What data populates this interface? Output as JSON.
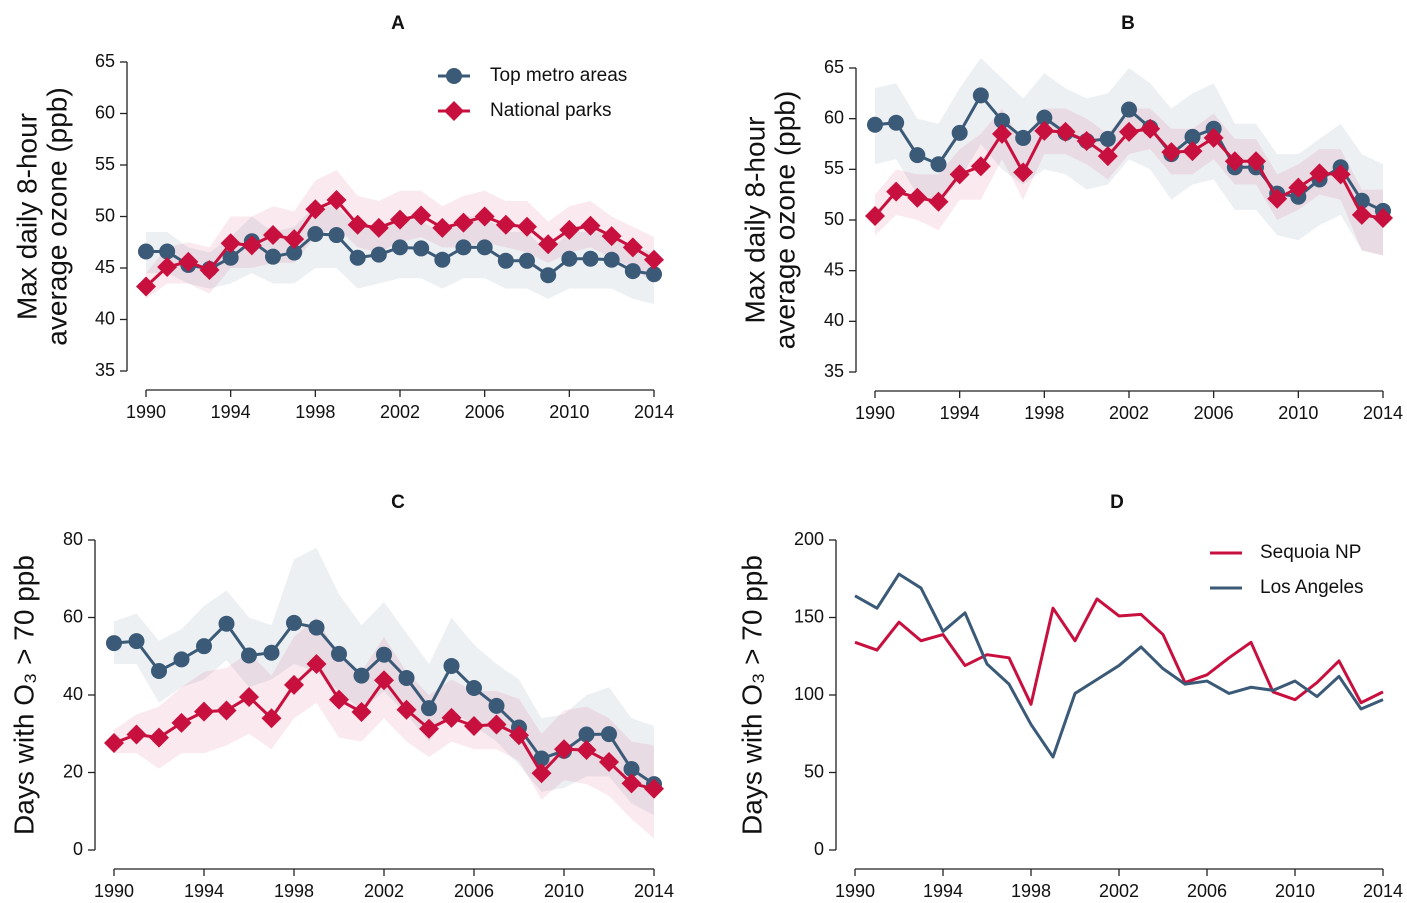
{
  "chart_data": [
    {
      "type": "line",
      "title": "A",
      "ylabel": [
        "Max daily 8-hour",
        "average ozone (ppb)"
      ],
      "x": [
        1990,
        1991,
        1992,
        1993,
        1994,
        1995,
        1996,
        1997,
        1998,
        1999,
        2000,
        2001,
        2002,
        2003,
        2004,
        2005,
        2006,
        2007,
        2008,
        2009,
        2010,
        2011,
        2012,
        2013,
        2014
      ],
      "xlim": [
        1990,
        2014
      ],
      "xticks": [
        1990,
        1994,
        1998,
        2002,
        2006,
        2010,
        2014
      ],
      "ylim": [
        35,
        65
      ],
      "yticks": [
        35,
        40,
        45,
        50,
        55,
        60,
        65
      ],
      "legend": "upper right",
      "series": [
        {
          "name": "Top metro areas",
          "color": "#3a5a78",
          "marker": "circle",
          "values": [
            46.6,
            46.6,
            45.3,
            44.9,
            46.0,
            47.6,
            46.1,
            46.5,
            48.3,
            48.2,
            46.0,
            46.3,
            47.0,
            46.9,
            45.8,
            47.0,
            47.0,
            45.7,
            45.7,
            44.3,
            45.9,
            45.9,
            45.8,
            44.7,
            44.4
          ],
          "band": {
            "lower": [
              44.5,
              44.5,
              43.5,
              43,
              43.5,
              44.5,
              43.5,
              43.5,
              45,
              45,
              43,
              43.5,
              44,
              44,
              43,
              44,
              44,
              43,
              43,
              42,
              43,
              43,
              43,
              42,
              41.5
            ],
            "upper": [
              48.5,
              48.5,
              47,
              46.5,
              48,
              50,
              48.5,
              49,
              51,
              51,
              49,
              49,
              50,
              49.5,
              48.5,
              50,
              50,
              48.5,
              48.5,
              46.5,
              48.5,
              48.5,
              48.5,
              47,
              46.5
            ]
          }
        },
        {
          "name": "National parks",
          "color": "#c8103f",
          "marker": "diamond",
          "values": [
            43.2,
            45.1,
            45.6,
            44.8,
            47.4,
            47.2,
            48.2,
            47.8,
            50.7,
            51.6,
            49.2,
            48.9,
            49.7,
            50.1,
            48.9,
            49.4,
            50.0,
            49.2,
            49.0,
            47.3,
            48.7,
            49.1,
            48.1,
            47.0,
            45.8
          ],
          "band": {
            "lower": [
              42,
              43.5,
              43.5,
              42.5,
              45,
              45,
              45.5,
              45.5,
              48,
              49,
              47,
              46.5,
              47.5,
              48,
              47,
              47,
              47.5,
              47,
              46.5,
              45.5,
              46.5,
              47,
              46,
              45,
              43.5
            ],
            "upper": [
              44.5,
              47,
              47.5,
              47,
              50,
              50,
              51,
              50.5,
              53.5,
              54.5,
              52,
              51.5,
              52.5,
              52.5,
              51,
              52,
              52.5,
              51.5,
              51.5,
              49.5,
              51,
              51.5,
              50,
              49,
              48
            ]
          }
        }
      ]
    },
    {
      "type": "line",
      "title": "B",
      "ylabel": [
        "Max daily 8-hour",
        "average ozone (ppb)"
      ],
      "x": [
        1990,
        1991,
        1992,
        1993,
        1994,
        1995,
        1996,
        1997,
        1998,
        1999,
        2000,
        2001,
        2002,
        2003,
        2004,
        2005,
        2006,
        2007,
        2008,
        2009,
        2010,
        2011,
        2012,
        2013,
        2014
      ],
      "xlim": [
        1990,
        2014
      ],
      "xticks": [
        1990,
        1994,
        1998,
        2002,
        2006,
        2010,
        2014
      ],
      "ylim": [
        35,
        65
      ],
      "yticks": [
        35,
        40,
        45,
        50,
        55,
        60,
        65
      ],
      "series": [
        {
          "color": "#3a5a78",
          "marker": "circle",
          "values": [
            59.4,
            59.6,
            56.4,
            55.5,
            58.6,
            62.3,
            59.8,
            58.1,
            60.1,
            58.6,
            57.8,
            58.0,
            60.9,
            59.1,
            56.5,
            58.2,
            59.0,
            55.2,
            55.2,
            52.6,
            52.3,
            54.0,
            55.2,
            51.9,
            50.9
          ],
          "band": {
            "lower": [
              55.5,
              56,
              52.5,
              51.5,
              54,
              57.5,
              55,
              53.5,
              55,
              54.5,
              53,
              53.5,
              56,
              55,
              52,
              53.5,
              54,
              51,
              51,
              48.5,
              48,
              49.5,
              50.5,
              47,
              46.5
            ],
            "upper": [
              63,
              63.5,
              60,
              59.5,
              63,
              66,
              64,
              62,
              64.5,
              63,
              62,
              62.5,
              65,
              63.5,
              61,
              62.5,
              63.5,
              59.5,
              59.5,
              56.5,
              56.5,
              58,
              59.5,
              56.5,
              55.5
            ]
          }
        },
        {
          "color": "#c8103f",
          "marker": "diamond",
          "values": [
            50.4,
            52.8,
            52.2,
            51.8,
            54.5,
            55.3,
            58.5,
            54.7,
            58.8,
            58.7,
            57.8,
            56.3,
            58.7,
            59.0,
            56.7,
            56.8,
            58.1,
            55.8,
            55.8,
            52.1,
            53.2,
            54.6,
            54.5,
            50.5,
            50.2
          ],
          "band": {
            "lower": [
              48.5,
              50.5,
              50,
              49,
              52,
              52,
              56,
              52,
              56.5,
              56.5,
              55.5,
              54,
              56.5,
              57,
              54.5,
              54.5,
              56,
              53.5,
              53.5,
              50,
              51,
              52.5,
              52,
              47,
              46.5
            ],
            "upper": [
              52.5,
              55,
              54.5,
              54.5,
              57,
              58.5,
              61,
              57.5,
              61,
              61,
              60,
              58.5,
              61,
              61,
              59,
              59,
              60.5,
              58,
              58,
              54.5,
              55.5,
              57,
              57,
              53,
              53
            ]
          }
        }
      ]
    },
    {
      "type": "line",
      "title": "C",
      "ylabel": [
        "Days with O₃ > 70 ppb"
      ],
      "x": [
        1990,
        1991,
        1992,
        1993,
        1994,
        1995,
        1996,
        1997,
        1998,
        1999,
        2000,
        2001,
        2002,
        2003,
        2004,
        2005,
        2006,
        2007,
        2008,
        2009,
        2010,
        2011,
        2012,
        2013,
        2014
      ],
      "xlim": [
        1990,
        2014
      ],
      "xticks": [
        1990,
        1994,
        1998,
        2002,
        2006,
        2010,
        2014
      ],
      "ylim": [
        0,
        80
      ],
      "yticks": [
        0,
        20,
        40,
        60,
        80
      ],
      "series": [
        {
          "color": "#3a5a78",
          "marker": "circle",
          "values": [
            53.4,
            53.9,
            46.2,
            49.2,
            52.6,
            58.4,
            50.2,
            50.9,
            58.6,
            57.4,
            50.6,
            45.0,
            50.4,
            44.4,
            36.6,
            47.5,
            41.8,
            37.2,
            31.6,
            23.6,
            25.6,
            29.8,
            29.9,
            20.9,
            17.0
          ],
          "band": {
            "lower": [
              48,
              48,
              38,
              42,
              44,
              49,
              42,
              44,
              48,
              46,
              41,
              36,
              41,
              35,
              28,
              36,
              32,
              28,
              22,
              15,
              16,
              19,
              19,
              12,
              9
            ],
            "upper": [
              59,
              61,
              54,
              57,
              63,
              67,
              60,
              58,
              75,
              78,
              66,
              58,
              64,
              56,
              48,
              60,
              53,
              48,
              44,
              34,
              35,
              40,
              42,
              34,
              32
            ]
          }
        },
        {
          "color": "#c8103f",
          "marker": "diamond",
          "values": [
            27.6,
            29.8,
            29.0,
            32.8,
            35.7,
            36.0,
            39.5,
            34.0,
            42.6,
            48.0,
            38.8,
            35.6,
            43.8,
            36.2,
            31.3,
            34.1,
            32.0,
            32.4,
            29.6,
            19.8,
            26.0,
            25.8,
            22.7,
            17.2,
            15.8
          ],
          "band": {
            "lower": [
              25,
              25,
              21,
              25,
              25,
              27,
              30,
              26,
              34,
              38,
              29,
              28,
              34,
              28,
              24,
              28,
              26,
              26,
              23,
              13,
              18,
              17,
              14,
              8,
              3
            ],
            "upper": [
              31,
              35,
              37,
              42,
              46,
              47,
              51,
              45,
              55,
              60,
              50,
              46,
              55,
              46,
              40,
              44,
              41,
              41,
              39,
              30,
              36,
              37,
              34,
              28,
              27
            ]
          }
        }
      ]
    },
    {
      "type": "line",
      "title": "D",
      "ylabel": [
        "Days with O₃ > 70 ppb"
      ],
      "x": [
        1990,
        1991,
        1992,
        1993,
        1994,
        1995,
        1996,
        1997,
        1998,
        1999,
        2000,
        2001,
        2002,
        2003,
        2004,
        2005,
        2006,
        2007,
        2008,
        2009,
        2010,
        2011,
        2012,
        2013,
        2014
      ],
      "xlim": [
        1990,
        2014
      ],
      "xticks": [
        1990,
        1994,
        1998,
        2002,
        2006,
        2010,
        2014
      ],
      "ylim": [
        0,
        200
      ],
      "yticks": [
        0,
        50,
        100,
        150,
        200
      ],
      "legend": "upper right",
      "series": [
        {
          "name": "Sequoia NP",
          "color": "#c8103f",
          "values": [
            134,
            129,
            147,
            135,
            139,
            119,
            126,
            124,
            94,
            156,
            135,
            162,
            151,
            152,
            139,
            108,
            113,
            124,
            134,
            102,
            97,
            108,
            122,
            95,
            102
          ]
        },
        {
          "name": "Los Angeles",
          "color": "#3a5a78",
          "values": [
            164,
            156,
            178,
            169,
            141,
            153,
            120,
            107,
            81,
            60,
            101,
            110,
            119,
            131,
            117,
            107,
            109,
            101,
            105,
            103,
            109,
            99,
            112,
            91,
            97
          ]
        }
      ]
    }
  ]
}
